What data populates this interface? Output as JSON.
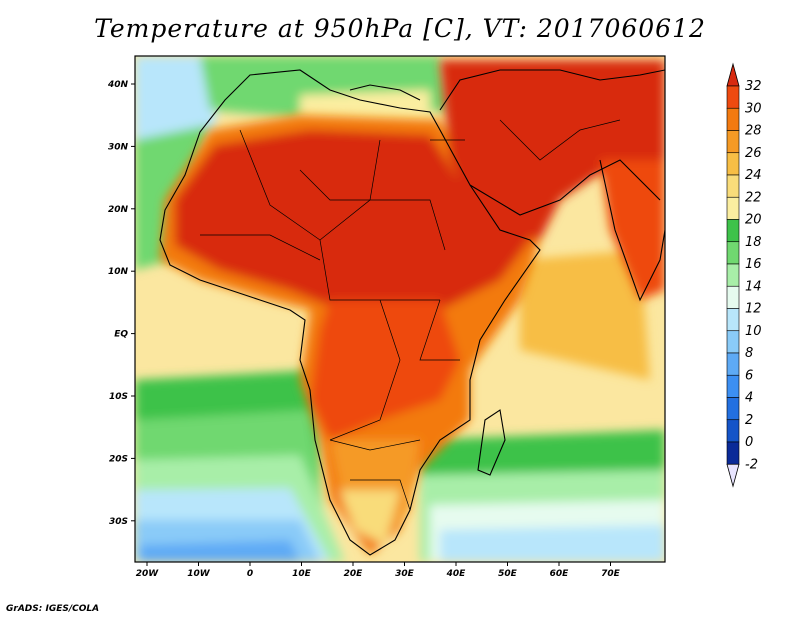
{
  "title": "Temperature at 950hPa [C], VT: 2017060612",
  "credit": "GrADS: IGES/COLA",
  "lon_ticks": [
    "20W",
    "10W",
    "0",
    "10E",
    "20E",
    "30E",
    "40E",
    "50E",
    "60E",
    "70E"
  ],
  "lat_ticks": [
    "40N",
    "30N",
    "20N",
    "10N",
    "EQ",
    "10S",
    "20S",
    "30S"
  ],
  "colorbar": {
    "labels": [
      "32",
      "30",
      "28",
      "26",
      "24",
      "22",
      "20",
      "18",
      "16",
      "14",
      "12",
      "10",
      "8",
      "6",
      "4",
      "2",
      "0",
      "-2"
    ],
    "colors_top_to_bottom": [
      "#d82a10",
      "#ee4a10",
      "#f37a10",
      "#f59a25",
      "#f7be45",
      "#f9dc7a",
      "#fbeea0",
      "#3ec24a",
      "#70d870",
      "#a8eea8",
      "#e6fbef",
      "#b8e6fb",
      "#8acbf8",
      "#5eaaf5",
      "#3c8ff2",
      "#2370e0",
      "#1454c8",
      "#0a2a98",
      "#000a60"
    ]
  }
}
